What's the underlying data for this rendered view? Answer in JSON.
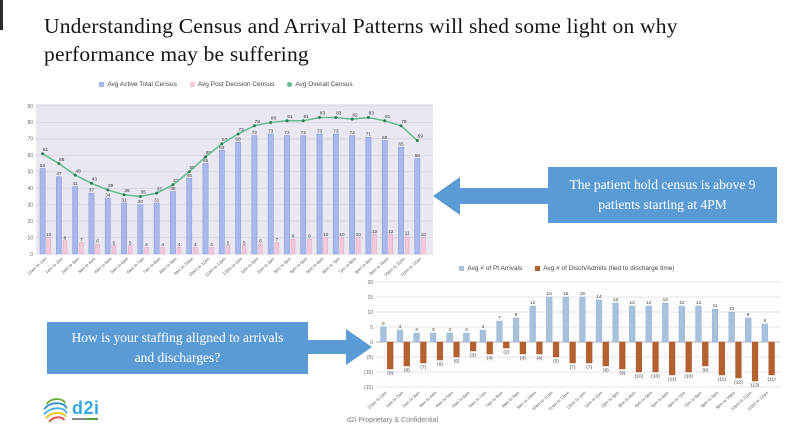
{
  "slide": {
    "title": "Understanding Census and Arrival Patterns will shed some light on why performance may be suffering",
    "footer": "d2i Proprietary & Confidential",
    "logo_text": "d2i"
  },
  "callouts": {
    "hold_census": "The patient hold census is above 9 patients starting at 4PM",
    "staffing": "How is your staffing aligned to arrivals and discharges?"
  },
  "colors": {
    "callout_blue": "#5b9bd5",
    "census_bar_blue": "#a9b8eb",
    "census_bar_pink": "#f5c9da",
    "census_line_green": "#63bb8e",
    "census_plot_bg": "#e9e8f1",
    "arrivals_bar_blue": "#a7c0dc",
    "arrivals_bar_orange": "#b4602f"
  },
  "chart_data": [
    {
      "id": "census-by-hour",
      "type": "bar",
      "title": "",
      "ylim": [
        0,
        90
      ],
      "ytick": 10,
      "grid": true,
      "legend_position": "top",
      "categories": [
        "12am to 1am",
        "1am to 2am",
        "2am to 3am",
        "3am to 4am",
        "4am to 5am",
        "5am to 6am",
        "6am to 7am",
        "7am to 8am",
        "8am to 9am",
        "9am to 10am",
        "10am to 11am",
        "11am to 12pm",
        "12pm to 1pm",
        "1pm to 2pm",
        "2pm to 3pm",
        "3pm to 4pm",
        "4pm to 5pm",
        "5pm to 6pm",
        "6pm to 7pm",
        "7pm to 8pm",
        "8pm to 9pm",
        "9pm to 10pm",
        "10pm to 11pm",
        "11pm to 12am"
      ],
      "series": [
        {
          "name": "Avg Active Total Census",
          "type": "bar",
          "color": "#a9b8eb",
          "stroke": "#8494d6",
          "values": [
            52,
            47,
            41,
            37,
            34,
            31,
            30,
            31,
            38,
            46,
            55,
            63,
            68,
            72,
            73,
            72,
            72,
            73,
            73,
            72,
            71,
            69,
            65,
            58
          ]
        },
        {
          "name": "Avg Post Decision Census",
          "type": "bar",
          "color": "#f5c9da",
          "stroke": "#e0a2bd",
          "values": [
            10,
            8,
            7,
            6,
            5,
            5,
            4,
            4,
            4,
            4,
            4,
            5,
            5,
            6,
            7,
            9,
            9,
            10,
            10,
            10,
            12,
            12,
            11,
            10
          ]
        },
        {
          "name": "Avg Overall Census",
          "type": "line",
          "color": "#63bb8e",
          "marker": "#2f7d52",
          "values": [
            61,
            55,
            48,
            43,
            39,
            36,
            35,
            37,
            42,
            50,
            59,
            67,
            73,
            78,
            80,
            81,
            81,
            83,
            83,
            82,
            83,
            81,
            78,
            69
          ]
        }
      ]
    },
    {
      "id": "arrivals-vs-discharges-by-hour",
      "type": "bar",
      "title": "",
      "ylim": [
        -15,
        20
      ],
      "ytick": 5,
      "grid": true,
      "legend_position": "top",
      "negative_label_format": "parentheses",
      "categories": [
        "12am to 1am",
        "1am to 2am",
        "2am to 3am",
        "3am to 4am",
        "4am to 5am",
        "5am to 6am",
        "6am to 7am",
        "7am to 8am",
        "8am to 9am",
        "9am to 10am",
        "10am to 11am",
        "11am to 12pm",
        "12pm to 1pm",
        "1pm to 2pm",
        "2pm to 3pm",
        "3pm to 4pm",
        "4pm to 5pm",
        "5pm to 6pm",
        "6pm to 7pm",
        "7pm to 8pm",
        "8pm to 9pm",
        "9pm to 10pm",
        "10pm to 11pm",
        "11pm to 12am"
      ],
      "series": [
        {
          "name": "Avg # of Pt Arrivals",
          "type": "bar",
          "color": "#a7c0dc",
          "stroke": "#8fadd0",
          "values": [
            5,
            4,
            3,
            3,
            3,
            3,
            4,
            7,
            8,
            12,
            15,
            15,
            15,
            14,
            13,
            12,
            12,
            13,
            12,
            12,
            11,
            10,
            8,
            6
          ]
        },
        {
          "name": "Avg # of Disch/Admits (tied to discharge time)",
          "type": "bar",
          "color": "#b4602f",
          "stroke": "#a05428",
          "values": [
            -9,
            -8,
            -7,
            -6,
            -5,
            -3,
            -4,
            -2,
            -4,
            -4,
            -5,
            -7,
            -7,
            -8,
            -9,
            -10,
            -10,
            -11,
            -10,
            -8,
            -11,
            -12,
            -13,
            -11
          ]
        }
      ]
    }
  ]
}
